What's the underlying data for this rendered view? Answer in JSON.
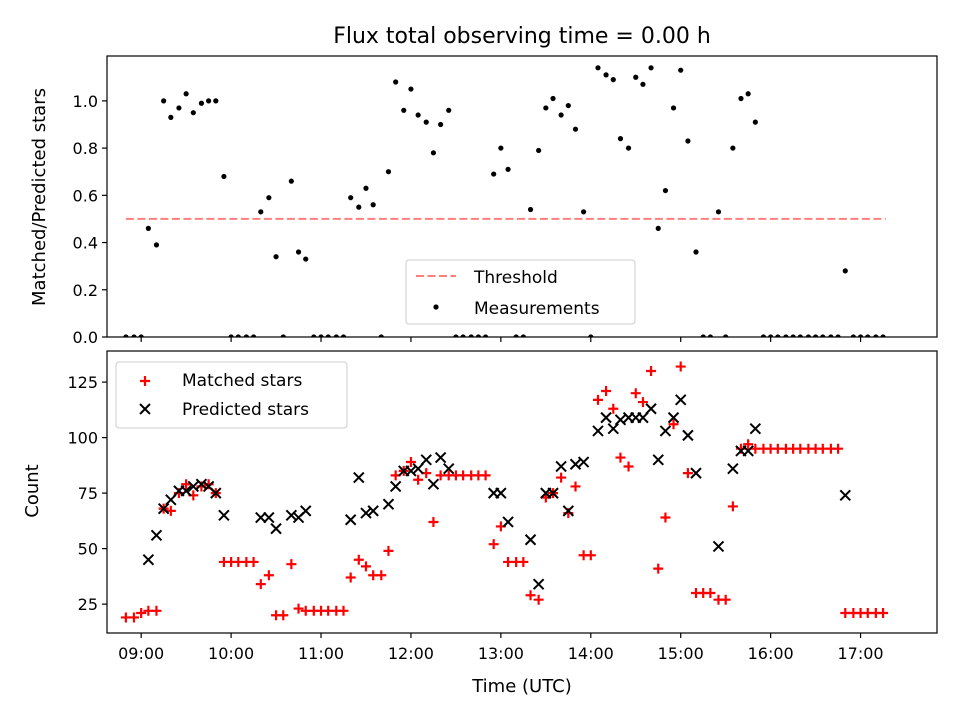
{
  "chart_data": [
    {
      "type": "scatter",
      "title": "Flux total observing time = 0.00 h",
      "xlabel": "",
      "ylabel": "Matched/Predicted stars",
      "ylim": [
        0,
        1.19
      ],
      "yticks": [
        0.0,
        0.2,
        0.4,
        0.6,
        0.8,
        1.0
      ],
      "ytick_labels": [
        "0.0",
        "0.2",
        "0.4",
        "0.6",
        "0.8",
        "1.0"
      ],
      "xlim_hours": [
        8.62,
        17.85
      ],
      "legend_position": "lower-center",
      "series": [
        {
          "name": "Threshold",
          "kind": "dashed-line",
          "color": "#ff7f7f",
          "x": [
            8.83,
            17.28
          ],
          "y": [
            0.5,
            0.5
          ]
        },
        {
          "name": "Measurements",
          "kind": "dot",
          "color": "#000000",
          "x": [
            8.83,
            8.92,
            9.0,
            9.08,
            9.17,
            9.25,
            9.33,
            9.42,
            9.5,
            9.58,
            9.67,
            9.75,
            9.83,
            9.92,
            10.0,
            10.08,
            10.17,
            10.25,
            10.33,
            10.42,
            10.5,
            10.58,
            10.67,
            10.75,
            10.83,
            10.92,
            11.0,
            11.08,
            11.17,
            11.25,
            11.33,
            11.42,
            11.5,
            11.58,
            11.67,
            11.75,
            11.83,
            11.92,
            12.0,
            12.08,
            12.17,
            12.25,
            12.33,
            12.42,
            12.5,
            12.58,
            12.67,
            12.75,
            12.83,
            12.92,
            13.0,
            13.08,
            13.17,
            13.25,
            13.33,
            13.42,
            13.5,
            13.58,
            13.67,
            13.75,
            13.83,
            13.92,
            14.0,
            14.08,
            14.17,
            14.25,
            14.33,
            14.42,
            14.5,
            14.58,
            14.67,
            14.75,
            14.83,
            14.92,
            15.0,
            15.08,
            15.17,
            15.25,
            15.33,
            15.42,
            15.5,
            15.58,
            15.67,
            15.75,
            15.83,
            15.92,
            16.0,
            16.08,
            16.17,
            16.25,
            16.33,
            16.42,
            16.5,
            16.58,
            16.67,
            16.75,
            16.83,
            16.92,
            17.0,
            17.08,
            17.17,
            17.25
          ],
          "y": [
            0,
            0,
            0,
            0.46,
            0.39,
            1.0,
            0.93,
            0.97,
            1.03,
            0.95,
            0.99,
            1.0,
            1.0,
            0.68,
            0,
            0,
            0,
            0,
            0.53,
            0.59,
            0.34,
            0,
            0.66,
            0.36,
            0.33,
            0,
            0,
            0,
            0,
            0,
            0.59,
            0.55,
            0.63,
            0.56,
            0,
            0.7,
            1.08,
            0.96,
            1.05,
            0.94,
            0.91,
            0.78,
            0.9,
            0.96,
            0,
            0,
            0,
            0,
            0,
            0.69,
            0.8,
            0.71,
            0,
            0,
            0.54,
            0.79,
            0.97,
            1.01,
            0.94,
            0.98,
            0.88,
            0.53,
            0,
            1.14,
            1.11,
            1.09,
            0.84,
            0.8,
            1.1,
            1.07,
            1.14,
            0.46,
            0.62,
            0.97,
            1.13,
            0.83,
            0.36,
            0,
            0,
            0.53,
            0,
            0.8,
            1.01,
            1.03,
            0.91,
            0,
            0,
            0,
            0,
            0,
            0,
            0,
            0,
            0,
            0,
            0,
            0.28,
            0,
            0,
            0,
            0,
            0
          ]
        }
      ]
    },
    {
      "type": "scatter",
      "title": "",
      "xlabel": "Time (UTC)",
      "ylabel": "Count",
      "ylim": [
        12,
        139
      ],
      "yticks": [
        25,
        50,
        75,
        100,
        125
      ],
      "ytick_labels": [
        "25",
        "50",
        "75",
        "100",
        "125"
      ],
      "xlim_hours": [
        8.62,
        17.85
      ],
      "xticks": [
        9,
        10,
        11,
        12,
        13,
        14,
        15,
        16,
        17
      ],
      "xtick_labels": [
        "09:00",
        "10:00",
        "11:00",
        "12:00",
        "13:00",
        "14:00",
        "15:00",
        "16:00",
        "17:00"
      ],
      "legend_position": "upper-left",
      "series": [
        {
          "name": "Matched stars",
          "kind": "plus",
          "color": "#ff0000",
          "x": [
            8.83,
            8.92,
            9.0,
            9.08,
            9.17,
            9.25,
            9.33,
            9.42,
            9.5,
            9.58,
            9.67,
            9.75,
            9.83,
            9.92,
            10.0,
            10.08,
            10.17,
            10.25,
            10.33,
            10.42,
            10.5,
            10.58,
            10.67,
            10.75,
            10.83,
            10.92,
            11.0,
            11.08,
            11.17,
            11.25,
            11.33,
            11.42,
            11.5,
            11.58,
            11.67,
            11.75,
            11.83,
            11.92,
            12.0,
            12.08,
            12.17,
            12.25,
            12.33,
            12.42,
            12.5,
            12.58,
            12.67,
            12.75,
            12.83,
            12.92,
            13.0,
            13.08,
            13.17,
            13.25,
            13.33,
            13.42,
            13.5,
            13.58,
            13.67,
            13.75,
            13.83,
            13.92,
            14.0,
            14.08,
            14.17,
            14.25,
            14.33,
            14.42,
            14.5,
            14.58,
            14.67,
            14.75,
            14.83,
            14.92,
            15.0,
            15.08,
            15.17,
            15.25,
            15.33,
            15.42,
            15.5,
            15.58,
            15.67,
            15.75,
            15.83,
            15.92,
            16.0,
            16.08,
            16.17,
            16.25,
            16.33,
            16.42,
            16.5,
            16.58,
            16.67,
            16.75,
            16.83,
            16.92,
            17.0,
            17.08,
            17.17,
            17.25
          ],
          "y": [
            19,
            19,
            21,
            22,
            22,
            68,
            67,
            75,
            79,
            74,
            78,
            79,
            75,
            44,
            44,
            44,
            44,
            44,
            34,
            38,
            20,
            20,
            43,
            23,
            22,
            22,
            22,
            22,
            22,
            22,
            37,
            45,
            42,
            38,
            38,
            49,
            83,
            85,
            89,
            81,
            84,
            62,
            83,
            83,
            83,
            83,
            83,
            83,
            83,
            52,
            60,
            44,
            44,
            44,
            29,
            27,
            73,
            75,
            82,
            66,
            78,
            47,
            47,
            117,
            121,
            113,
            91,
            87,
            120,
            116,
            130,
            41,
            64,
            106,
            132,
            84,
            30,
            30,
            30,
            27,
            27,
            69,
            95,
            97,
            95,
            95,
            95,
            95,
            95,
            95,
            95,
            95,
            95,
            95,
            95,
            95,
            21,
            21,
            21,
            21,
            21,
            21
          ]
        },
        {
          "name": "Predicted stars",
          "kind": "x",
          "color": "#000000",
          "x": [
            9.08,
            9.17,
            9.25,
            9.33,
            9.42,
            9.5,
            9.58,
            9.67,
            9.75,
            9.83,
            9.92,
            10.33,
            10.42,
            10.5,
            10.67,
            10.75,
            10.83,
            11.33,
            11.42,
            11.5,
            11.58,
            11.75,
            11.83,
            11.92,
            12.0,
            12.08,
            12.17,
            12.25,
            12.33,
            12.42,
            12.92,
            13.0,
            13.08,
            13.33,
            13.42,
            13.5,
            13.58,
            13.67,
            13.75,
            13.83,
            13.92,
            14.08,
            14.17,
            14.25,
            14.33,
            14.42,
            14.5,
            14.58,
            14.67,
            14.75,
            14.83,
            14.92,
            15.0,
            15.08,
            15.17,
            15.42,
            15.58,
            15.67,
            15.75,
            15.83,
            16.83
          ],
          "y": [
            45,
            56,
            68,
            72,
            76,
            76,
            78,
            79,
            78,
            75,
            65,
            64,
            64,
            59,
            65,
            64,
            67,
            63,
            82,
            66,
            67,
            70,
            78,
            85,
            85,
            86,
            90,
            79,
            91,
            86,
            75,
            75,
            62,
            54,
            34,
            75,
            75,
            87,
            67,
            88,
            89,
            103,
            109,
            104,
            108,
            109,
            109,
            109,
            113,
            90,
            103,
            109,
            117,
            101,
            84,
            51,
            86,
            94,
            94,
            104,
            74
          ]
        }
      ],
      "legend": [
        "Matched stars",
        "Predicted stars"
      ]
    }
  ]
}
